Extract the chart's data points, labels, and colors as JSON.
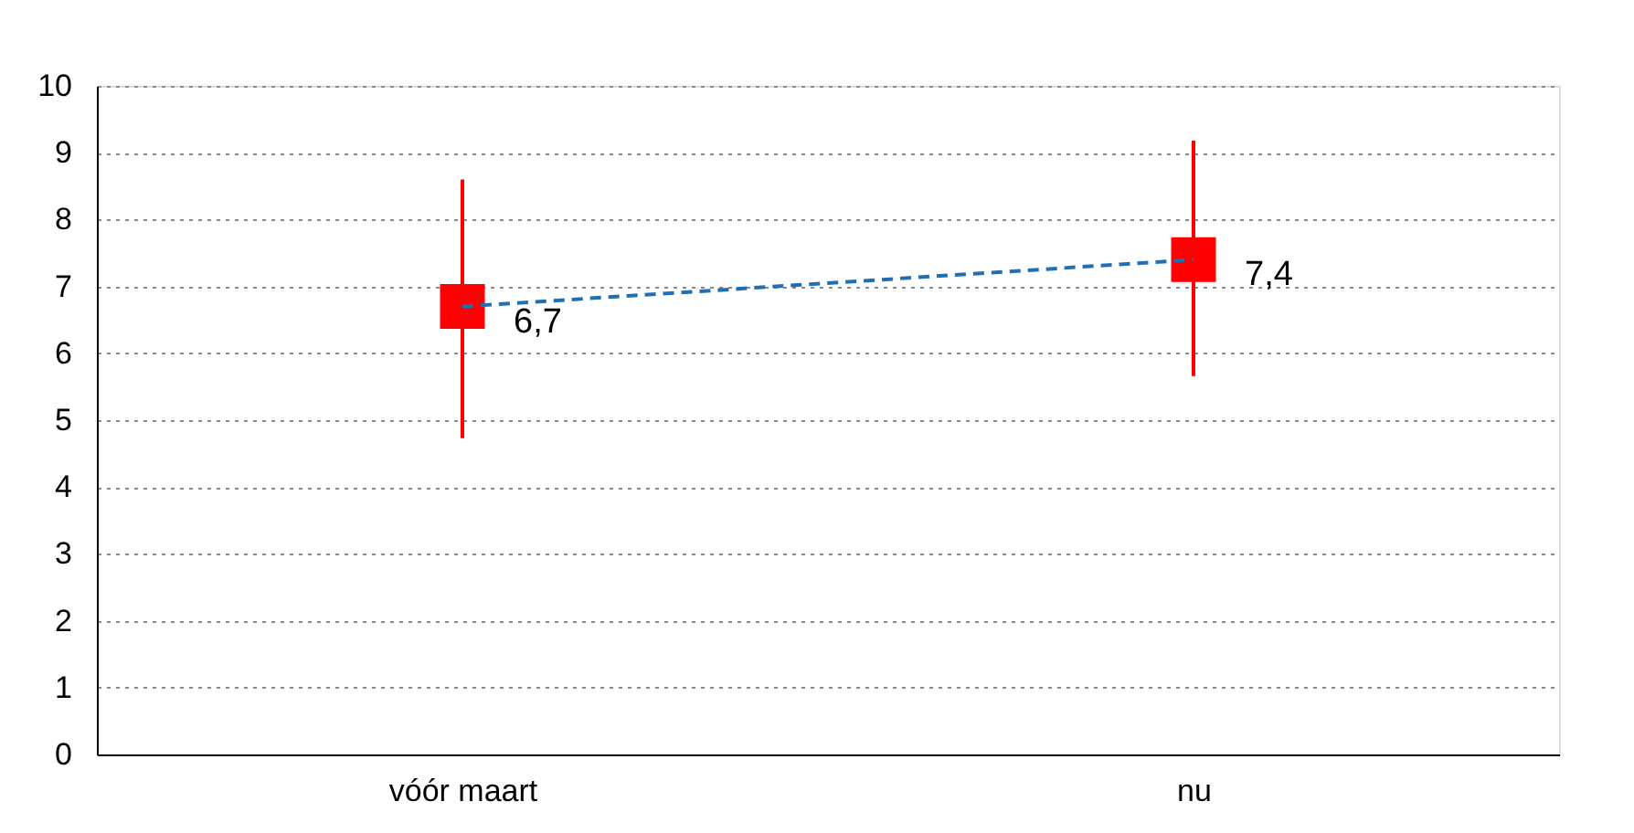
{
  "chart_data": {
    "type": "scatter",
    "categories": [
      "vóór maart",
      "nu"
    ],
    "series": [
      {
        "color": "#ff0000",
        "values": [
          6.7,
          7.4
        ],
        "errors": [
          [
            4.73,
            8.6
          ],
          [
            5.66,
            9.18
          ]
        ],
        "value_labels": [
          "6,7",
          "7,4"
        ],
        "marker": "square"
      },
      {
        "type": "line",
        "color": "#1f6fb4",
        "values": [
          6.7,
          7.4
        ],
        "line_style": "dashed",
        "marker": "none"
      }
    ],
    "ylim": [
      0,
      10
    ],
    "yticks": [
      0,
      1,
      2,
      3,
      4,
      5,
      6,
      7,
      8,
      9,
      10
    ],
    "grid": "y"
  }
}
